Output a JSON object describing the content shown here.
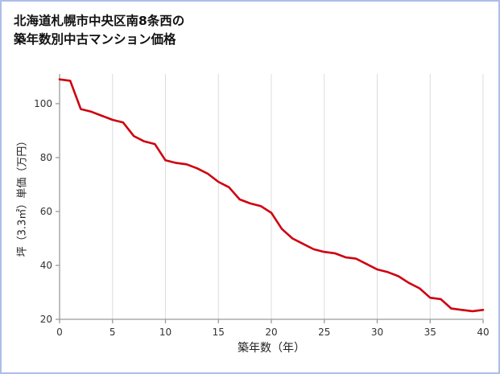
{
  "title": {
    "line1": "北海道札幌市中央区南8条西の",
    "line2": "築年数別中古マンション価格"
  },
  "page": {
    "border_color": "#aebde8",
    "background": "#ffffff"
  },
  "chart_data": {
    "type": "line",
    "title": "北海道札幌市中央区南8条西の築年数別中古マンション価格",
    "xlabel": "築年数（年）",
    "ylabel": "坪（3.3㎡）単価（万円）",
    "x_ticks": [
      0,
      5,
      10,
      15,
      20,
      25,
      30,
      35,
      40
    ],
    "y_ticks": [
      20,
      40,
      60,
      80,
      100
    ],
    "xlim": [
      0,
      40
    ],
    "ylim": [
      20,
      111
    ],
    "grid": "vertical-only",
    "legend": "none",
    "line_color": "#cf000f",
    "x": [
      0,
      1,
      2,
      3,
      4,
      5,
      6,
      7,
      8,
      9,
      10,
      11,
      12,
      13,
      14,
      15,
      16,
      17,
      18,
      19,
      20,
      21,
      22,
      23,
      24,
      25,
      26,
      27,
      28,
      29,
      30,
      31,
      32,
      33,
      34,
      35,
      36,
      37,
      38,
      39,
      40
    ],
    "y": [
      109,
      108.5,
      98,
      97,
      95.5,
      94,
      93,
      88,
      86,
      85,
      79,
      78,
      77.5,
      76,
      74,
      71,
      69,
      64.5,
      63,
      62,
      59.5,
      53.5,
      50,
      48,
      46,
      45,
      44.5,
      43,
      42.5,
      40.5,
      38.5,
      37.5,
      36,
      33.5,
      31.5,
      28,
      27.5,
      24,
      23.5,
      23,
      23.5
    ]
  }
}
